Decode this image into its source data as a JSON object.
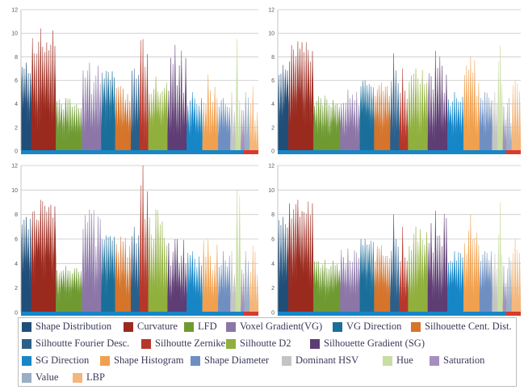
{
  "chart_data": {
    "type": "area",
    "ylim": [
      0,
      12
    ],
    "yticks": [
      0,
      2,
      4,
      6,
      8,
      10,
      12
    ],
    "grid": true,
    "legend_placement": "bottom",
    "series": [
      {
        "name": "Shape Distribution",
        "color": "#1f4e79"
      },
      {
        "name": "Curvature",
        "color": "#9b2a1e"
      },
      {
        "name": "LFD",
        "color": "#6f9a32"
      },
      {
        "name": "Voxel Gradient(VG)",
        "color": "#8c76a8"
      },
      {
        "name": "VG Direction",
        "color": "#1a6f9a"
      },
      {
        "name": "Silhouette Cent. Dist.",
        "color": "#d5742a"
      },
      {
        "name": "Silhoutte Fourier Desc.",
        "color": "#2b5f8a"
      },
      {
        "name": "Silhoutte Zernike",
        "color": "#b5372b"
      },
      {
        "name": "Silhoutte D2",
        "color": "#8fb03c"
      },
      {
        "name": "Silhouette Gradient (SG)",
        "color": "#5e3d74"
      },
      {
        "name": "SG Direction",
        "color": "#1786c6"
      },
      {
        "name": "Shape Histogram",
        "color": "#f0a04e"
      },
      {
        "name": "Shape Diameter",
        "color": "#6f8fc2"
      },
      {
        "name": "Dominant HSV",
        "color": "#c4c4c4"
      },
      {
        "name": "Hue",
        "color": "#c8dea2"
      },
      {
        "name": "Saturation",
        "color": "#a68fc0"
      },
      {
        "name": "Value",
        "color": "#9aaec4"
      },
      {
        "name": "LBP",
        "color": "#f4b67a"
      }
    ],
    "panels": [
      {
        "segments": [
          {
            "series": "Shape Distribution",
            "max": 7.5,
            "min": 6.0
          },
          {
            "series": "Curvature",
            "max": 10.4,
            "min": 6.5
          },
          {
            "series": "LFD",
            "max": 4.5,
            "min": 3.0
          },
          {
            "series": "Voxel Gradient(VG)",
            "max": 7.5,
            "min": 3.0
          },
          {
            "series": "VG Direction",
            "max": 6.8,
            "min": 5.5
          },
          {
            "series": "Silhouette Cent. Dist.",
            "max": 5.5,
            "min": 3.5
          },
          {
            "series": "Silhoutte Fourier Desc.",
            "max": 7.0,
            "min": 3.0
          },
          {
            "series": "Silhoutte Zernike",
            "max": 9.5,
            "min": 2.0
          },
          {
            "series": "Silhoutte D2",
            "max": 6.3,
            "min": 4.0
          },
          {
            "series": "Silhouette Gradient (SG)",
            "max": 9.0,
            "min": 2.5
          },
          {
            "series": "SG Direction",
            "max": 5.0,
            "min": 3.0
          },
          {
            "series": "Shape Histogram",
            "max": 6.5,
            "min": 2.0
          },
          {
            "series": "Shape Diameter",
            "max": 4.5,
            "min": 3.0
          },
          {
            "series": "Dominant HSV",
            "max": 5.0,
            "min": 2.0
          },
          {
            "series": "Hue",
            "max": 9.5,
            "min": 1.0
          },
          {
            "series": "Saturation",
            "max": 3.5,
            "min": 1.0
          },
          {
            "series": "Value",
            "max": 5.0,
            "min": 1.0
          },
          {
            "series": "LBP",
            "max": 5.5,
            "min": 1.0
          }
        ]
      },
      {
        "segments": [
          {
            "series": "Shape Distribution",
            "max": 7.3,
            "min": 6.0
          },
          {
            "series": "Curvature",
            "max": 9.3,
            "min": 6.5
          },
          {
            "series": "LFD",
            "max": 4.7,
            "min": 3.2
          },
          {
            "series": "Voxel Gradient(VG)",
            "max": 5.2,
            "min": 3.0
          },
          {
            "series": "VG Direction",
            "max": 6.0,
            "min": 5.0
          },
          {
            "series": "Silhouette Cent. Dist.",
            "max": 5.8,
            "min": 3.5
          },
          {
            "series": "Silhoutte Fourier Desc.",
            "max": 8.3,
            "min": 3.0
          },
          {
            "series": "Silhoutte Zernike",
            "max": 7.0,
            "min": 2.0
          },
          {
            "series": "Silhoutte D2",
            "max": 7.0,
            "min": 4.0
          },
          {
            "series": "Silhouette Gradient (SG)",
            "max": 8.5,
            "min": 3.0
          },
          {
            "series": "SG Direction",
            "max": 5.0,
            "min": 3.0
          },
          {
            "series": "Shape Histogram",
            "max": 8.0,
            "min": 2.5
          },
          {
            "series": "Shape Diameter",
            "max": 5.0,
            "min": 3.0
          },
          {
            "series": "Dominant HSV",
            "max": 5.0,
            "min": 2.0
          },
          {
            "series": "Hue",
            "max": 9.0,
            "min": 1.0
          },
          {
            "series": "Saturation",
            "max": 3.8,
            "min": 1.0
          },
          {
            "series": "Value",
            "max": 4.5,
            "min": 1.0
          },
          {
            "series": "LBP",
            "max": 6.0,
            "min": 1.0
          }
        ]
      },
      {
        "segments": [
          {
            "series": "Shape Distribution",
            "max": 7.8,
            "min": 6.2
          },
          {
            "series": "Curvature",
            "max": 9.2,
            "min": 6.5
          },
          {
            "series": "LFD",
            "max": 3.8,
            "min": 2.7
          },
          {
            "series": "Voxel Gradient(VG)",
            "max": 8.4,
            "min": 3.0
          },
          {
            "series": "VG Direction",
            "max": 6.3,
            "min": 5.0
          },
          {
            "series": "Silhouette Cent. Dist.",
            "max": 6.2,
            "min": 3.5
          },
          {
            "series": "Silhoutte Fourier Desc.",
            "max": 7.0,
            "min": 3.0
          },
          {
            "series": "Silhoutte Zernike",
            "max": 12.0,
            "min": 2.0
          },
          {
            "series": "Silhoutte D2",
            "max": 8.4,
            "min": 3.5
          },
          {
            "series": "Silhouette Gradient (SG)",
            "max": 6.0,
            "min": 2.5
          },
          {
            "series": "SG Direction",
            "max": 5.0,
            "min": 3.0
          },
          {
            "series": "Shape Histogram",
            "max": 6.0,
            "min": 2.0
          },
          {
            "series": "Shape Diameter",
            "max": 5.0,
            "min": 3.0
          },
          {
            "series": "Dominant HSV",
            "max": 5.0,
            "min": 2.0
          },
          {
            "series": "Hue",
            "max": 10.0,
            "min": 1.0
          },
          {
            "series": "Saturation",
            "max": 3.5,
            "min": 1.0
          },
          {
            "series": "Value",
            "max": 5.0,
            "min": 1.0
          },
          {
            "series": "LBP",
            "max": 5.5,
            "min": 1.0
          }
        ]
      },
      {
        "segments": [
          {
            "series": "Shape Distribution",
            "max": 7.8,
            "min": 6.0
          },
          {
            "series": "Curvature",
            "max": 9.2,
            "min": 6.5
          },
          {
            "series": "LFD",
            "max": 4.3,
            "min": 3.0
          },
          {
            "series": "Voxel Gradient(VG)",
            "max": 5.2,
            "min": 3.0
          },
          {
            "series": "VG Direction",
            "max": 6.0,
            "min": 5.0
          },
          {
            "series": "Silhouette Cent. Dist.",
            "max": 5.5,
            "min": 3.5
          },
          {
            "series": "Silhoutte Fourier Desc.",
            "max": 8.0,
            "min": 3.0
          },
          {
            "series": "Silhoutte Zernike",
            "max": 7.0,
            "min": 2.0
          },
          {
            "series": "Silhoutte D2",
            "max": 7.0,
            "min": 4.0
          },
          {
            "series": "Silhouette Gradient (SG)",
            "max": 8.3,
            "min": 3.0
          },
          {
            "series": "SG Direction",
            "max": 5.0,
            "min": 3.0
          },
          {
            "series": "Shape Histogram",
            "max": 8.0,
            "min": 2.5
          },
          {
            "series": "Shape Diameter",
            "max": 5.0,
            "min": 3.0
          },
          {
            "series": "Dominant HSV",
            "max": 4.8,
            "min": 2.0
          },
          {
            "series": "Hue",
            "max": 9.0,
            "min": 1.0
          },
          {
            "series": "Saturation",
            "max": 3.8,
            "min": 1.0
          },
          {
            "series": "Value",
            "max": 4.5,
            "min": 1.0
          },
          {
            "series": "LBP",
            "max": 6.0,
            "min": 1.0
          }
        ]
      }
    ]
  }
}
